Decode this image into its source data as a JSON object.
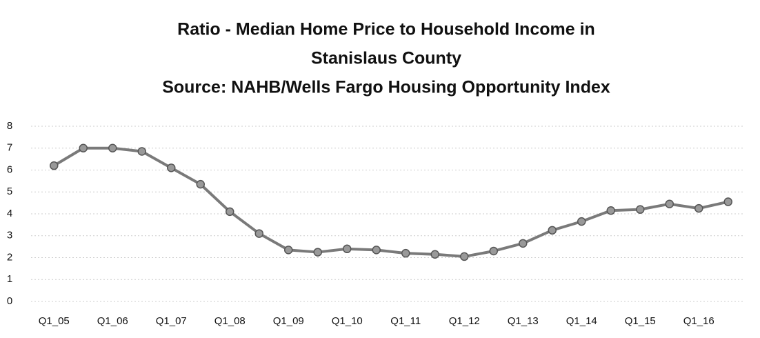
{
  "chart_data": {
    "type": "line",
    "title": [
      "Ratio - Median Home Price to Household Income in",
      "Stanislaus County",
      "Source: NAHB/Wells Fargo Housing Opportunity Index"
    ],
    "categories": [
      "Q1_05",
      null,
      "Q1_06",
      null,
      "Q1_07",
      null,
      "Q1_08",
      null,
      "Q1_09",
      null,
      "Q1_10",
      null,
      "Q1_11",
      null,
      "Q1_12",
      null,
      "Q1_13",
      null,
      "Q1_14",
      null,
      "Q1_15",
      null,
      "Q1_16",
      null
    ],
    "series": [
      {
        "name": "Ratio",
        "color": "#7a7a7a",
        "values": [
          6.2,
          7.0,
          7.0,
          6.85,
          6.1,
          5.35,
          4.1,
          3.1,
          2.35,
          2.25,
          2.4,
          2.35,
          2.2,
          2.15,
          2.05,
          2.3,
          2.65,
          3.25,
          3.65,
          4.15,
          4.2,
          4.45,
          4.25,
          4.55
        ]
      }
    ],
    "ylim": [
      0,
      8
    ],
    "yticks": [
      0,
      1,
      2,
      3,
      4,
      5,
      6,
      7,
      8
    ],
    "grid": true
  }
}
